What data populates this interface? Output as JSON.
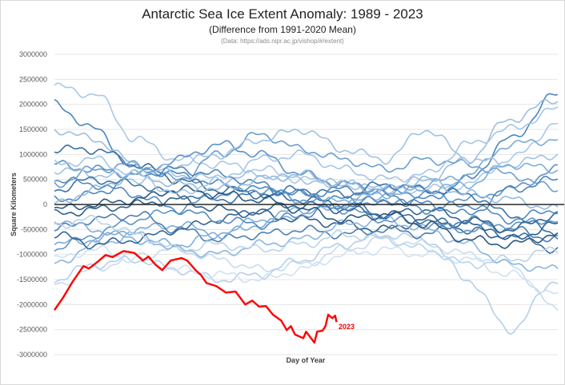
{
  "chart_data": {
    "type": "line",
    "title": "Antarctic Sea Ice Extent Anomaly: 1989 - 2023",
    "subtitle": "(Difference from 1991-2020 Mean)",
    "source": "(Data: https://ads.nipr.ac.jp/vishop/#/extent)",
    "xlabel": "Day of Year",
    "ylabel": "Square Kilometers",
    "xlim": [
      1,
      365
    ],
    "ylim": [
      -3000000,
      3000000
    ],
    "yticks": [
      3000000,
      2500000,
      2000000,
      1500000,
      1000000,
      500000,
      0,
      -500000,
      -1000000,
      -1500000,
      -2000000,
      -2500000,
      -3000000
    ],
    "grid": true,
    "zero_line_color": "#262626",
    "highlight": {
      "name": "2023",
      "color": "#ff0000",
      "x": [
        1,
        7,
        14,
        22,
        26,
        32,
        38,
        43,
        51,
        59,
        65,
        69,
        74,
        79,
        85,
        93,
        97,
        103,
        107,
        111,
        118,
        125,
        132,
        139,
        144,
        149,
        154,
        159,
        165,
        169,
        172,
        175,
        181,
        183,
        189,
        191,
        195,
        197,
        199,
        202,
        204,
        205
      ],
      "y": [
        -2110000,
        -1870000,
        -1550000,
        -1230000,
        -1280000,
        -1150000,
        -1010000,
        -1050000,
        -930000,
        -970000,
        -1120000,
        -1040000,
        -1200000,
        -1310000,
        -1120000,
        -1070000,
        -1120000,
        -1310000,
        -1410000,
        -1570000,
        -1630000,
        -1760000,
        -1740000,
        -2000000,
        -1920000,
        -2040000,
        -2030000,
        -2200000,
        -2320000,
        -2510000,
        -2430000,
        -2600000,
        -2670000,
        -2540000,
        -2760000,
        -2540000,
        -2520000,
        -2430000,
        -2200000,
        -2270000,
        -2220000,
        -2350000
      ]
    },
    "other_years_x": [
      1,
      30,
      60,
      90,
      120,
      150,
      180,
      210,
      240,
      270,
      300,
      330,
      365
    ],
    "other_years": [
      {
        "color": "#a9c8e8",
        "y": [
          2350000,
          2200000,
          1300000,
          900000,
          800000,
          700000,
          500000,
          400000,
          300000,
          300000,
          400000,
          900000,
          1600000
        ]
      },
      {
        "color": "#4a86c0",
        "y": [
          2000000,
          1500000,
          700000,
          600000,
          400000,
          300000,
          200000,
          100000,
          0,
          100000,
          500000,
          1300000,
          2200000
        ]
      },
      {
        "color": "#9ebfe0",
        "y": [
          1500000,
          1300000,
          800000,
          600000,
          500000,
          600000,
          500000,
          400000,
          300000,
          500000,
          900000,
          1700000,
          2100000
        ]
      },
      {
        "color": "#3a6f9f",
        "y": [
          1100000,
          1100000,
          800000,
          500000,
          300000,
          200000,
          100000,
          0,
          -200000,
          -300000,
          -500000,
          -600000,
          -900000
        ]
      },
      {
        "color": "#5b92c8",
        "y": [
          800000,
          700000,
          600000,
          900000,
          1200000,
          1000000,
          600000,
          400000,
          300000,
          200000,
          100000,
          300000,
          700000
        ]
      },
      {
        "color": "#c6dbef",
        "y": [
          -1600000,
          -1300000,
          -1000000,
          -900000,
          -1100000,
          -1300000,
          -1200000,
          -900000,
          -700000,
          -800000,
          -1000000,
          -1200000,
          -2100000
        ]
      },
      {
        "color": "#b5d0ea",
        "y": [
          -1500000,
          -1200000,
          -1100000,
          -1300000,
          -1500000,
          -1400000,
          -1100000,
          -800000,
          -600000,
          -700000,
          -1500000,
          -2500000,
          -1500000
        ]
      },
      {
        "color": "#7aaad6",
        "y": [
          -800000,
          -700000,
          -500000,
          -400000,
          -600000,
          -400000,
          -200000,
          0,
          200000,
          400000,
          600000,
          1200000,
          1300000
        ]
      },
      {
        "color": "#2f5f8a",
        "y": [
          -200000,
          -100000,
          0,
          100000,
          -100000,
          -200000,
          -300000,
          -400000,
          -500000,
          -300000,
          -400000,
          -700000,
          -400000
        ]
      },
      {
        "color": "#6a9fd0",
        "y": [
          400000,
          700000,
          800000,
          500000,
          1000000,
          1400000,
          1100000,
          900000,
          700000,
          900000,
          800000,
          600000,
          300000
        ]
      },
      {
        "color": "#a0c2e4",
        "y": [
          700000,
          600000,
          500000,
          800000,
          1000000,
          1300000,
          1500000,
          1100000,
          900000,
          1500000,
          900000,
          800000,
          1000000
        ]
      },
      {
        "color": "#4d7fb0",
        "y": [
          -500000,
          -300000,
          -200000,
          -500000,
          -700000,
          -600000,
          -500000,
          -600000,
          -500000,
          -600000,
          -300000,
          -500000,
          -700000
        ]
      },
      {
        "color": "#8cb5dd",
        "y": [
          -1200000,
          -800000,
          -600000,
          -900000,
          -1000000,
          -800000,
          -700000,
          -400000,
          -300000,
          -500000,
          -800000,
          -1200000,
          -1300000
        ]
      },
      {
        "color": "#3c73a8",
        "y": [
          300000,
          500000,
          400000,
          200000,
          100000,
          200000,
          300000,
          200000,
          400000,
          300000,
          200000,
          -200000,
          -600000
        ]
      },
      {
        "color": "#5f94c6",
        "y": [
          -900000,
          -600000,
          -300000,
          -100000,
          200000,
          300000,
          100000,
          -100000,
          -300000,
          -400000,
          -500000,
          -400000,
          -300000
        ]
      },
      {
        "color": "#cfe1f2",
        "y": [
          -1100000,
          -900000,
          -1100000,
          -1300000,
          -1400000,
          -1500000,
          -1300000,
          -1000000,
          -900000,
          -1000000,
          -1100000,
          -1400000,
          -1800000
        ]
      },
      {
        "color": "#4f86bb",
        "y": [
          100000,
          200000,
          600000,
          700000,
          600000,
          400000,
          200000,
          300000,
          200000,
          0,
          -200000,
          300000,
          500000
        ]
      },
      {
        "color": "#7eaed9",
        "y": [
          -300000,
          -500000,
          -700000,
          -800000,
          -600000,
          -300000,
          -100000,
          100000,
          200000,
          300000,
          400000,
          800000,
          700000
        ]
      },
      {
        "color": "#336699",
        "y": [
          -600000,
          -800000,
          -700000,
          -500000,
          -300000,
          -100000,
          0,
          -100000,
          -200000,
          -100000,
          -300000,
          -500000,
          -200000
        ]
      },
      {
        "color": "#93badf",
        "y": [
          0,
          300000,
          600000,
          400000,
          300000,
          500000,
          600000,
          400000,
          300000,
          500000,
          200000,
          100000,
          -100000
        ]
      },
      {
        "color": "#b9d3ec",
        "y": [
          -400000,
          -300000,
          -600000,
          -900000,
          -800000,
          -900000,
          -800000,
          -600000,
          -700000,
          -900000,
          -1200000,
          -1100000,
          -900000
        ]
      },
      {
        "color": "#5489c0",
        "y": [
          500000,
          400000,
          200000,
          -100000,
          -300000,
          -400000,
          -200000,
          0,
          100000,
          -100000,
          0,
          -300000,
          -100000
        ]
      },
      {
        "color": "#2a5883",
        "y": [
          -100000,
          0,
          100000,
          300000,
          200000,
          100000,
          -100000,
          -300000,
          -200000,
          -400000,
          -700000,
          -800000,
          -600000
        ]
      },
      {
        "color": "#a5c5e6",
        "y": [
          800000,
          900000,
          600000,
          200000,
          500000,
          900000,
          1000000,
          700000,
          500000,
          600000,
          1200000,
          1500000,
          1900000
        ]
      }
    ]
  }
}
